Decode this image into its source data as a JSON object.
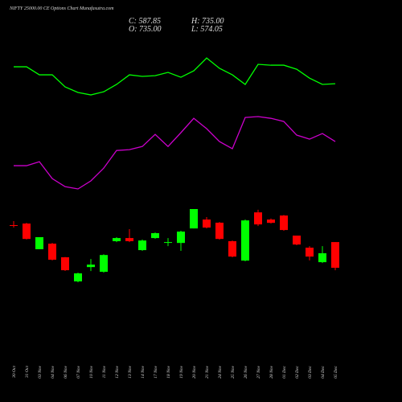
{
  "chart_data": {
    "type": "candlestick",
    "title": "NIFTY 25000.00 CE Options Chart Munafasutra.com",
    "ohlc_labels": {
      "close": "C: 587.85",
      "high": "H: 735.00",
      "open": "O: 735.00",
      "low": "L: 574.05"
    },
    "categories": [
      "30 Oct",
      "31 Oct",
      "03 Nov",
      "04 Nov",
      "06 Nov",
      "07 Nov",
      "10 Nov",
      "11 Nov",
      "12 Nov",
      "13 Nov",
      "14 Nov",
      "17 Nov",
      "18 Nov",
      "19 Nov",
      "20 Nov",
      "21 Nov",
      "24 Nov",
      "25 Nov",
      "26 Nov",
      "27 Nov",
      "28 Nov",
      "01 Dec",
      "02 Dec",
      "03 Dec",
      "04 Dec",
      "05 Dec"
    ],
    "open": [
      832,
      841,
      694,
      726,
      648,
      510,
      592,
      565,
      740,
      758,
      689,
      758,
      731,
      730,
      813,
      864,
      846,
      740,
      629,
      905,
      864,
      887,
      772,
      703,
      620,
      735
    ],
    "high": [
      855,
      845,
      763,
      730,
      650,
      560,
      638,
      665,
      763,
      809,
      750,
      790,
      758,
      800,
      924,
      878,
      850,
      744,
      864,
      920,
      870,
      890,
      772,
      712,
      712,
      735
    ],
    "low": [
      818,
      750,
      694,
      630,
      570,
      505,
      569,
      560,
      735,
      735,
      685,
      754,
      712,
      685,
      813,
      813,
      749,
      648,
      625,
      827,
      841,
      800,
      717,
      630,
      615,
      574.05
    ],
    "close": [
      828,
      753,
      763,
      634,
      574,
      556,
      606,
      661,
      758,
      740,
      744,
      786,
      735,
      795,
      924,
      818,
      753,
      652,
      859,
      836,
      845,
      804,
      721,
      652,
      671,
      587.85
    ],
    "up_color": "#00ff00",
    "down_color": "#ff0000",
    "series": [
      {
        "color": "#00ff00",
        "values": [
          1738,
          1738,
          1692,
          1692,
          1623,
          1591,
          1577,
          1595,
          1637,
          1692,
          1683,
          1687,
          1706,
          1678,
          1715,
          1788,
          1729,
          1692,
          1637,
          1752,
          1747,
          1747,
          1724,
          1673,
          1637,
          1641
        ]
      },
      {
        "color": "#cc00cc",
        "values": [
          1172,
          1172,
          1195,
          1098,
          1052,
          1039,
          1085,
          1158,
          1259,
          1264,
          1282,
          1351,
          1282,
          1361,
          1443,
          1384,
          1310,
          1269,
          1448,
          1453,
          1443,
          1425,
          1347,
          1324,
          1356,
          1310
        ]
      }
    ],
    "ylim": [
      464,
      1844
    ]
  }
}
